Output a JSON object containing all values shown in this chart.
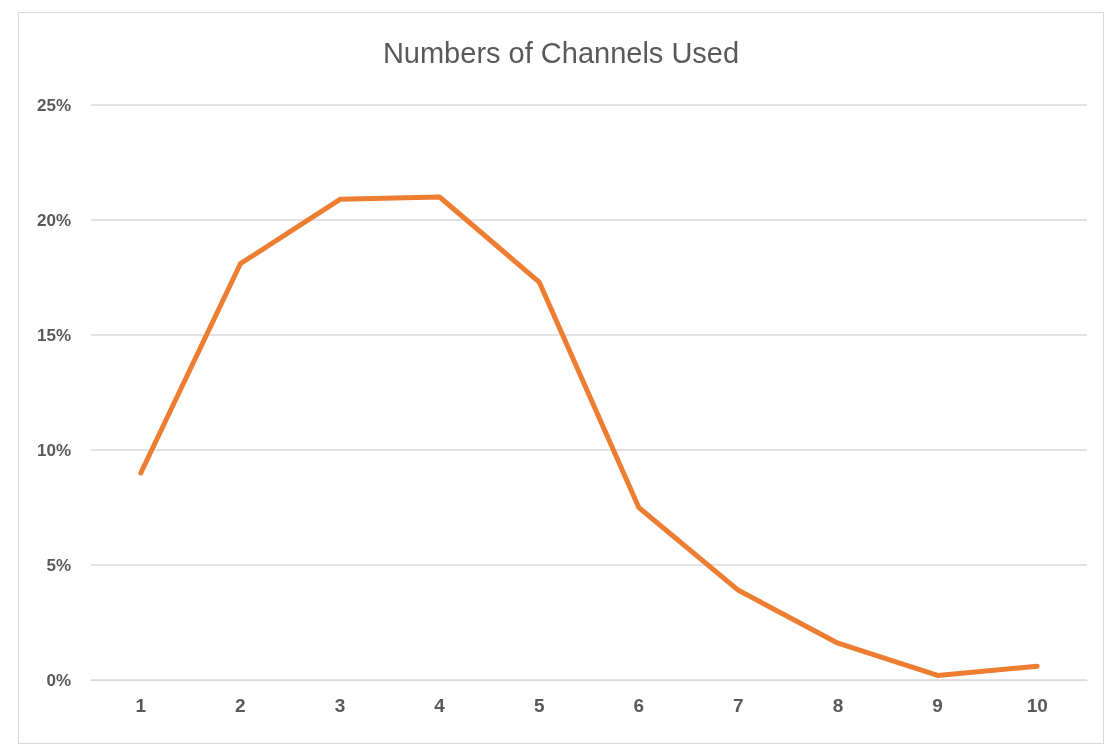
{
  "chart_data": {
    "type": "line",
    "title": "Numbers of Channels Used",
    "categories": [
      "1",
      "2",
      "3",
      "4",
      "5",
      "6",
      "7",
      "8",
      "9",
      "10"
    ],
    "series": [
      {
        "color": "#ed7d31",
        "values": [
          9.0,
          18.1,
          20.9,
          21.0,
          17.3,
          7.5,
          3.9,
          1.6,
          0.2,
          0.6
        ]
      }
    ],
    "ylim": [
      0,
      25
    ],
    "yticks": [
      {
        "value": 0,
        "label": "0%"
      },
      {
        "value": 5,
        "label": "5%"
      },
      {
        "value": 10,
        "label": "10%"
      },
      {
        "value": 15,
        "label": "15%"
      },
      {
        "value": 20,
        "label": "20%"
      },
      {
        "value": 25,
        "label": "25%"
      }
    ],
    "grid": "y",
    "marker": "none",
    "line_style": "solid"
  }
}
